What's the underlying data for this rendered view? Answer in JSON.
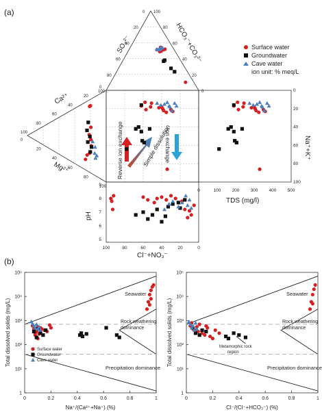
{
  "panel_a_label": "(a)",
  "panel_b_label": "(b)",
  "colors": {
    "surface": "#d42020",
    "ground": "#111111",
    "cave": "#4a7fc0",
    "arrow_blue": "#2aa4d8",
    "arrow_grad_start": "#c04a28",
    "arrow_grad_end": "#3a8ad0"
  },
  "legend_a": {
    "items": [
      "Surface water",
      "Groundwater",
      "Cave water"
    ],
    "note": "ion unit: % meq/L"
  },
  "legend_b": {
    "items": [
      "Surface water",
      "Groundwater",
      "Cave water"
    ]
  },
  "arrows": {
    "reverse_ion": "Reverse ion exchange",
    "simple_dissolution": "Simple dissolution",
    "ion_exchange": "Ion exchange"
  },
  "axes_a": {
    "so4": "SO₄²⁻",
    "hco3": "HCO₃⁻+CO₃²⁻",
    "ca": "Ca²⁺",
    "mg": "Mg²⁺",
    "na": "Na⁺+K⁺",
    "cl": "Cl⁻+NO₃⁻",
    "ph": "pH",
    "tds": "TDS (mg/l)"
  },
  "annotations_b": {
    "seawater": "Seawater",
    "rock": "Rock weathering dominance",
    "precip": "Precipitation dominance",
    "meta": "Metamorphic rock region"
  },
  "chart_data": [
    {
      "type": "scatter",
      "name": "Piper-type diagram with pH and TDS subplots",
      "ternary_ticks": [
        "0",
        "20",
        "40",
        "60",
        "80",
        "100"
      ],
      "tds_ticks": [
        "0",
        "100",
        "200",
        "300",
        "400",
        "500"
      ],
      "tds_range": [
        0,
        500
      ],
      "na_ticks": [
        "0",
        "20",
        "40",
        "60",
        "80",
        "100"
      ],
      "na_range": [
        0,
        100
      ],
      "cl_ticks": [
        "100",
        "80",
        "60",
        "40",
        "20",
        "0"
      ],
      "cl_range": [
        100,
        0
      ],
      "ph_ticks": [
        "5",
        "6",
        "7",
        "8",
        "9"
      ],
      "ph_range": [
        5,
        9
      ],
      "series": [
        {
          "name": "Surface water",
          "tds_na": [
            [
              300,
              18
            ],
            [
              305,
              20
            ],
            [
              310,
              22
            ],
            [
              325,
              24
            ],
            [
              350,
              21
            ],
            [
              360,
              23
            ],
            [
              210,
              13
            ],
            [
              245,
              14
            ],
            [
              240,
              18
            ],
            [
              285,
              19
            ],
            [
              190,
              17
            ],
            [
              215,
              21
            ],
            [
              330,
              86
            ]
          ],
          "cl_ph": [
            [
              94,
              7.8
            ],
            [
              92,
              8.2
            ],
            [
              95,
              8.0
            ],
            [
              93,
              7.2
            ],
            [
              60,
              8.1
            ],
            [
              55,
              7.9
            ],
            [
              48,
              7.7
            ],
            [
              45,
              8.0
            ],
            [
              40,
              8.1
            ],
            [
              35,
              7.9
            ],
            [
              30,
              8.2
            ],
            [
              25,
              8.0
            ],
            [
              18,
              7.8
            ],
            [
              10,
              7.1
            ],
            [
              8,
              6.8
            ],
            [
              12,
              6.6
            ],
            [
              15,
              7.2
            ],
            [
              5,
              7.5
            ]
          ]
        },
        {
          "name": "Groundwater",
          "tds_na": [
            [
              160,
              42
            ],
            [
              190,
              45
            ],
            [
              175,
              40
            ],
            [
              195,
              55
            ],
            [
              205,
              57
            ],
            [
              235,
              42
            ],
            [
              110,
              64
            ],
            [
              190,
              16
            ]
          ],
          "cl_ph": [
            [
              68,
              6.8
            ],
            [
              60,
              7.0
            ],
            [
              55,
              6.5
            ],
            [
              50,
              6.8
            ],
            [
              45,
              7.2
            ],
            [
              40,
              6.3
            ],
            [
              36,
              6.7
            ],
            [
              33,
              7.4
            ],
            [
              28,
              7.6
            ],
            [
              22,
              7.7
            ],
            [
              20,
              7.3
            ],
            [
              15,
              7.9
            ]
          ]
        },
        {
          "name": "Cave water",
          "tds_na": [
            [
              340,
              17
            ],
            [
              315,
              15
            ],
            [
              345,
              18
            ],
            [
              355,
              22
            ],
            [
              380,
              17
            ],
            [
              370,
              14
            ],
            [
              330,
              13
            ],
            [
              295,
              16
            ],
            [
              275,
              14
            ]
          ],
          "cl_ph": [
            [
              37,
              7.2
            ],
            [
              32,
              7.6
            ],
            [
              28,
              7.8
            ],
            [
              22,
              7.4
            ],
            [
              18,
              7.7
            ],
            [
              12,
              7.5
            ],
            [
              10,
              7.9
            ],
            [
              8,
              7.3
            ],
            [
              14,
              8.2
            ]
          ]
        }
      ]
    },
    {
      "type": "scatter",
      "xlabel": "Na⁺/(Ca²⁺+Na⁺) (%)",
      "ylabel": "Total dissolved solids (mg/L)",
      "x_ticks": [
        "0",
        "0.2",
        "0.4",
        "0.6",
        "0.8",
        "1"
      ],
      "y_ticks": [
        "1",
        "10¹",
        "10²",
        "10³",
        "10⁴",
        "10⁵"
      ],
      "xlim": [
        0,
        1
      ],
      "ylim": [
        1,
        100000
      ],
      "yscale": "log",
      "series": [
        {
          "name": "Surface water",
          "x": [
            0.06,
            0.07,
            0.08,
            0.09,
            0.1,
            0.11,
            0.12,
            0.13,
            0.15,
            0.17,
            0.19,
            0.2,
            0.08,
            0.1,
            0.93,
            0.94,
            0.95,
            0.96,
            0.97,
            0.98,
            0.95,
            0.96
          ],
          "y": [
            600,
            450,
            300,
            350,
            550,
            280,
            500,
            450,
            400,
            350,
            650,
            500,
            250,
            180,
            3000,
            6000,
            12000,
            18000,
            25000,
            30000,
            4500,
            8000
          ]
        },
        {
          "name": "Groundwater",
          "x": [
            0.07,
            0.09,
            0.1,
            0.12,
            0.14,
            0.16,
            0.42,
            0.43,
            0.44,
            0.47,
            0.62,
            0.7,
            0.72
          ],
          "y": [
            350,
            200,
            450,
            300,
            250,
            400,
            250,
            300,
            220,
            280,
            500,
            250,
            200
          ]
        },
        {
          "name": "Cave water",
          "x": [
            0.05,
            0.06,
            0.07,
            0.08,
            0.09,
            0.1,
            0.11,
            0.12
          ],
          "y": [
            900,
            750,
            600,
            500,
            700,
            450,
            550,
            400
          ]
        }
      ]
    },
    {
      "type": "scatter",
      "xlabel": "Cl⁻/(Cl⁻+HCO₃⁻) (%)",
      "ylabel": "Total dissolved solids (mg/L)",
      "x_ticks": [
        "0",
        "0.2",
        "0.4",
        "0.6",
        "0.8",
        "1"
      ],
      "y_ticks": [
        "1",
        "10¹",
        "10²",
        "10³",
        "10⁴",
        "10⁵"
      ],
      "xlim": [
        0,
        1
      ],
      "ylim": [
        1,
        100000
      ],
      "yscale": "log",
      "series": [
        {
          "name": "Surface water",
          "x": [
            0.03,
            0.05,
            0.07,
            0.09,
            0.12,
            0.14,
            0.16,
            0.18,
            0.2,
            0.22,
            0.25,
            0.15,
            0.1,
            0.08,
            0.04,
            0.94,
            0.95,
            0.96,
            0.97,
            0.98,
            0.96
          ],
          "y": [
            600,
            450,
            400,
            350,
            300,
            250,
            500,
            220,
            180,
            400,
            300,
            600,
            700,
            550,
            800,
            3000,
            6000,
            12000,
            20000,
            30000,
            5000
          ]
        },
        {
          "name": "Groundwater",
          "x": [
            0.05,
            0.07,
            0.1,
            0.12,
            0.15,
            0.3,
            0.32,
            0.36,
            0.4,
            0.45
          ],
          "y": [
            500,
            300,
            250,
            400,
            350,
            220,
            180,
            300,
            250,
            200
          ]
        },
        {
          "name": "Cave water",
          "x": [
            0.02,
            0.03,
            0.04,
            0.05,
            0.06,
            0.07,
            0.08
          ],
          "y": [
            900,
            700,
            500,
            600,
            400,
            800,
            450
          ]
        }
      ]
    }
  ]
}
